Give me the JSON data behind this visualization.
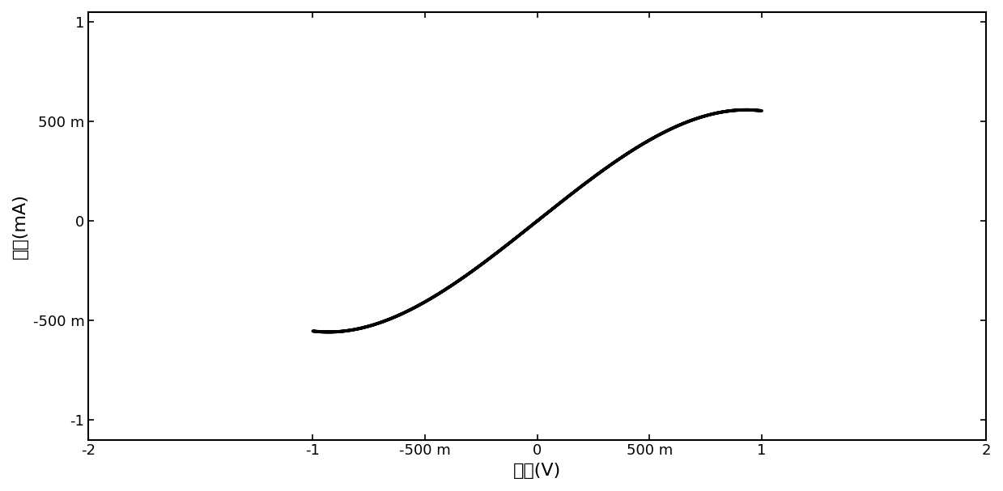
{
  "xlabel": "电压(V)",
  "ylabel": "电流(mA)",
  "xlim": [
    -2,
    2
  ],
  "ylim": [
    -1.1,
    1.05
  ],
  "xticks": [
    -2,
    -1,
    -0.5,
    0,
    0.5,
    1,
    2
  ],
  "yticks": [
    -1,
    -0.5,
    0,
    0.5,
    1
  ],
  "xtick_labels": [
    "-2",
    "-1",
    "-500 m",
    "0",
    "500 m",
    "1",
    "2"
  ],
  "ytick_labels": [
    "-1",
    "-500 m",
    "0",
    "500 m",
    "1"
  ],
  "line_color": "#000000",
  "line_width": 2.8,
  "background_color": "#ffffff",
  "amplitude_v": 1.0,
  "num_points": 4000,
  "alpha": 0.8,
  "beta": 0.5,
  "gamma": 0.3
}
